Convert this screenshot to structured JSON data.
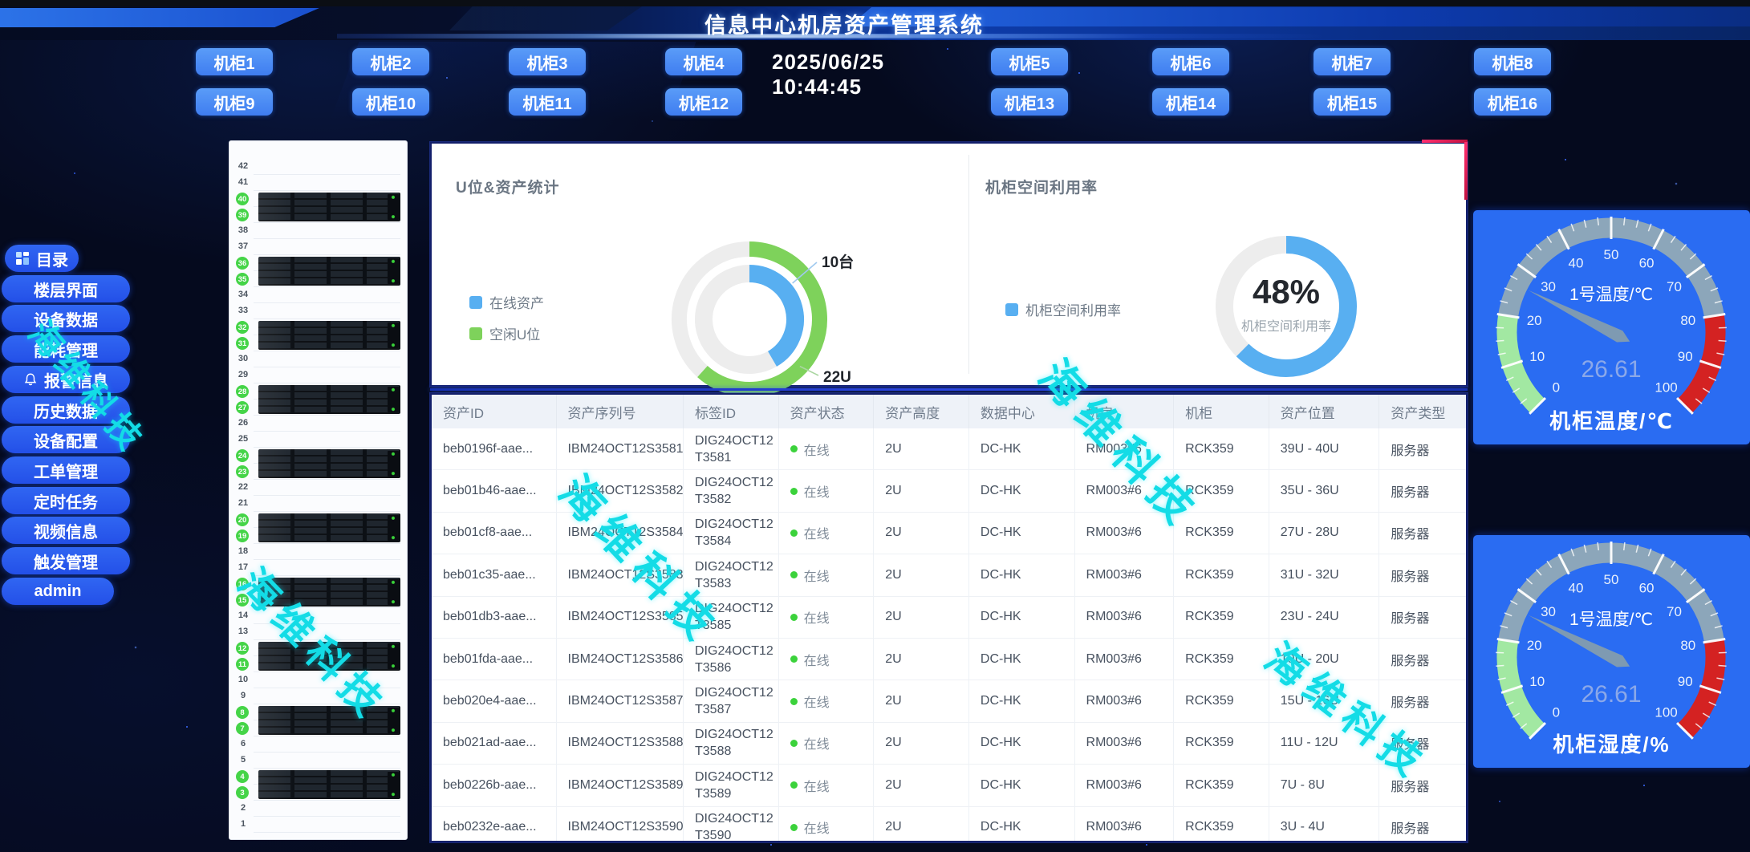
{
  "header": {
    "title": "信息中心机房资产管理系统",
    "datetime": "2025/06/25 10:44:45"
  },
  "cabinets": {
    "row1_left": [
      "机柜1",
      "机柜2",
      "机柜3",
      "机柜4"
    ],
    "row1_right": [
      "机柜5",
      "机柜6",
      "机柜7",
      "机柜8"
    ],
    "row2_left": [
      "机柜9",
      "机柜10",
      "机柜11",
      "机柜12"
    ],
    "row2_right": [
      "机柜13",
      "机柜14",
      "机柜15",
      "机柜16"
    ]
  },
  "sidebar": {
    "items": [
      {
        "label": "目录",
        "icon": "grid-icon"
      },
      {
        "label": "楼层界面"
      },
      {
        "label": "设备数据"
      },
      {
        "label": "能耗管理"
      },
      {
        "label": "报警信息",
        "icon": "bell-icon"
      },
      {
        "label": "历史数据"
      },
      {
        "label": "设备配置"
      },
      {
        "label": "工单管理"
      },
      {
        "label": "定时任务"
      },
      {
        "label": "视频信息"
      },
      {
        "label": "触发管理"
      },
      {
        "label": "admin"
      }
    ]
  },
  "rack": {
    "total_units": 42,
    "occupied_units": [
      40,
      39,
      36,
      35,
      32,
      31,
      28,
      27,
      24,
      23,
      20,
      19,
      16,
      15,
      12,
      11,
      8,
      7,
      4,
      3
    ]
  },
  "watermark": {
    "text": "海维科技"
  },
  "charts": {
    "u_stats": {
      "type": "donut",
      "title": "U位&资产统计",
      "legend": [
        {
          "label": "在线资产",
          "color": "#58aff1"
        },
        {
          "label": "空闲U位",
          "color": "#7ed25b"
        }
      ],
      "online_assets_label": "10台",
      "free_units_label": "22U",
      "online_assets": 10,
      "free_units": 22,
      "inner_sweep_deg": 150,
      "outer_sweep_deg": 222,
      "track_color": "#ededed"
    },
    "utilization": {
      "type": "donut",
      "title": "机柜空间利用率",
      "legend": [
        {
          "label": "机柜空间利用率",
          "color": "#58aff1"
        }
      ],
      "value_text": "48%",
      "value": 48,
      "center_label": "机柜空间利用率",
      "sweep_deg": 225,
      "track_color": "#ededed"
    }
  },
  "table": {
    "columns": [
      "资产ID",
      "资产序列号",
      "标签ID",
      "资产状态",
      "资产高度",
      "数据中心",
      "机房",
      "机柜",
      "资产位置",
      "资产类型"
    ],
    "rows": [
      {
        "id": "beb0196f-aae...",
        "serial": "IBM24OCT12S3581",
        "tag1": "DIG24OCT12",
        "tag2": "T3581",
        "status": "在线",
        "height": "2U",
        "dc": "DC-HK",
        "room": "RM003#6",
        "cabinet": "RCK359",
        "position": "39U - 40U",
        "type": "服务器"
      },
      {
        "id": "beb01b46-aae...",
        "serial": "IBM24OCT12S3582",
        "tag1": "DIG24OCT12",
        "tag2": "T3582",
        "status": "在线",
        "height": "2U",
        "dc": "DC-HK",
        "room": "RM003#6",
        "cabinet": "RCK359",
        "position": "35U - 36U",
        "type": "服务器"
      },
      {
        "id": "beb01cf8-aae...",
        "serial": "IBM24OCT12S3584",
        "tag1": "DIG24OCT12",
        "tag2": "T3584",
        "status": "在线",
        "height": "2U",
        "dc": "DC-HK",
        "room": "RM003#6",
        "cabinet": "RCK359",
        "position": "27U - 28U",
        "type": "服务器"
      },
      {
        "id": "beb01c35-aae...",
        "serial": "IBM24OCT12S3583",
        "tag1": "DIG24OCT12",
        "tag2": "T3583",
        "status": "在线",
        "height": "2U",
        "dc": "DC-HK",
        "room": "RM003#6",
        "cabinet": "RCK359",
        "position": "31U - 32U",
        "type": "服务器"
      },
      {
        "id": "beb01db3-aae...",
        "serial": "IBM24OCT12S3585",
        "tag1": "DIG24OCT12",
        "tag2": "T3585",
        "status": "在线",
        "height": "2U",
        "dc": "DC-HK",
        "room": "RM003#6",
        "cabinet": "RCK359",
        "position": "23U - 24U",
        "type": "服务器"
      },
      {
        "id": "beb01fda-aae...",
        "serial": "IBM24OCT12S3586",
        "tag1": "DIG24OCT12",
        "tag2": "T3586",
        "status": "在线",
        "height": "2U",
        "dc": "DC-HK",
        "room": "RM003#6",
        "cabinet": "RCK359",
        "position": "19U - 20U",
        "type": "服务器"
      },
      {
        "id": "beb020e4-aae...",
        "serial": "IBM24OCT12S3587",
        "tag1": "DIG24OCT12",
        "tag2": "T3587",
        "status": "在线",
        "height": "2U",
        "dc": "DC-HK",
        "room": "RM003#6",
        "cabinet": "RCK359",
        "position": "15U - 16U",
        "type": "服务器"
      },
      {
        "id": "beb021ad-aae...",
        "serial": "IBM24OCT12S3588",
        "tag1": "DIG24OCT12",
        "tag2": "T3588",
        "status": "在线",
        "height": "2U",
        "dc": "DC-HK",
        "room": "RM003#6",
        "cabinet": "RCK359",
        "position": "11U - 12U",
        "type": "服务器"
      },
      {
        "id": "beb0226b-aae...",
        "serial": "IBM24OCT12S3589",
        "tag1": "DIG24OCT12",
        "tag2": "T3589",
        "status": "在线",
        "height": "2U",
        "dc": "DC-HK",
        "room": "RM003#6",
        "cabinet": "RCK359",
        "position": "7U - 8U",
        "type": "服务器"
      },
      {
        "id": "beb0232e-aae...",
        "serial": "IBM24OCT12S3590",
        "tag1": "DIG24OCT12",
        "tag2": "T3590",
        "status": "在线",
        "height": "2U",
        "dc": "DC-HK",
        "room": "RM003#6",
        "cabinet": "RCK359",
        "position": "3U - 4U",
        "type": "服务器"
      }
    ]
  },
  "gauges": [
    {
      "title": "1号温度/℃",
      "value": 26.61,
      "value_text": "26.61",
      "min": 0,
      "max": 100,
      "zones": [
        {
          "to": 20,
          "color": "#a2e8a2"
        },
        {
          "to": 80,
          "color": "#8ca6ba"
        },
        {
          "to": 100,
          "color": "#d42222"
        }
      ],
      "bottom_label": "机柜温度/℃"
    },
    {
      "title": "1号温度/℃",
      "value": 26.61,
      "value_text": "26.61",
      "min": 0,
      "max": 100,
      "zones": [
        {
          "to": 20,
          "color": "#a2e8a2"
        },
        {
          "to": 80,
          "color": "#8ca6ba"
        },
        {
          "to": 100,
          "color": "#d42222"
        }
      ],
      "bottom_label": "机柜湿度/%"
    }
  ]
}
